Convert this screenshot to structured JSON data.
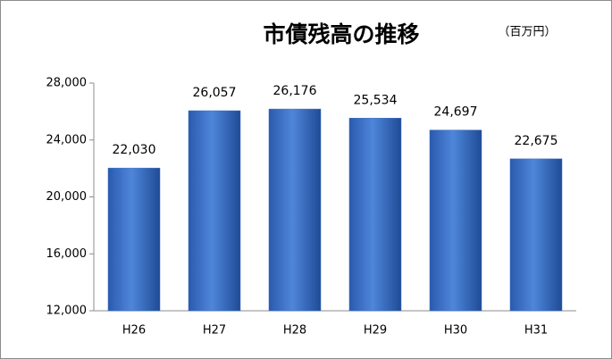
{
  "chart_data": {
    "type": "bar",
    "title": "市債残高の推移",
    "unit": "（百万円）",
    "categories": [
      "H26",
      "H27",
      "H28",
      "H29",
      "H30",
      "H31"
    ],
    "values": [
      22030,
      26057,
      26176,
      25534,
      24697,
      22675
    ],
    "value_labels": [
      "22,030",
      "26,057",
      "26,176",
      "25,534",
      "24,697",
      "22,675"
    ],
    "color": "#3a6fc4",
    "ylim": [
      12000,
      28000
    ],
    "yticks": [
      {
        "value": 12000,
        "label": "12,000"
      },
      {
        "value": 16000,
        "label": "16,000"
      },
      {
        "value": 20000,
        "label": "20,000"
      },
      {
        "value": 24000,
        "label": "24,000"
      },
      {
        "value": 28000,
        "label": "28,000"
      }
    ],
    "grid": false
  }
}
